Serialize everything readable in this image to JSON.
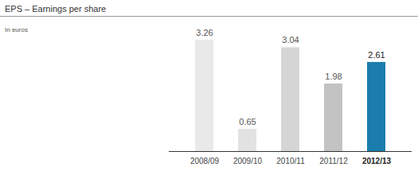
{
  "chart_data": {
    "type": "bar",
    "title": "EPS – Earnings per share",
    "subtitle": "In euros",
    "categories": [
      "2008/09",
      "2009/10",
      "2010/11",
      "2011/12",
      "2012/13"
    ],
    "values": [
      3.26,
      0.65,
      3.04,
      1.98,
      2.61
    ],
    "colors": [
      "#e9e9e9",
      "#e2e2e2",
      "#d5d5d5",
      "#c3c3c3",
      "#1a7dac"
    ],
    "data_labels": true,
    "tick_labels": "x"
  }
}
